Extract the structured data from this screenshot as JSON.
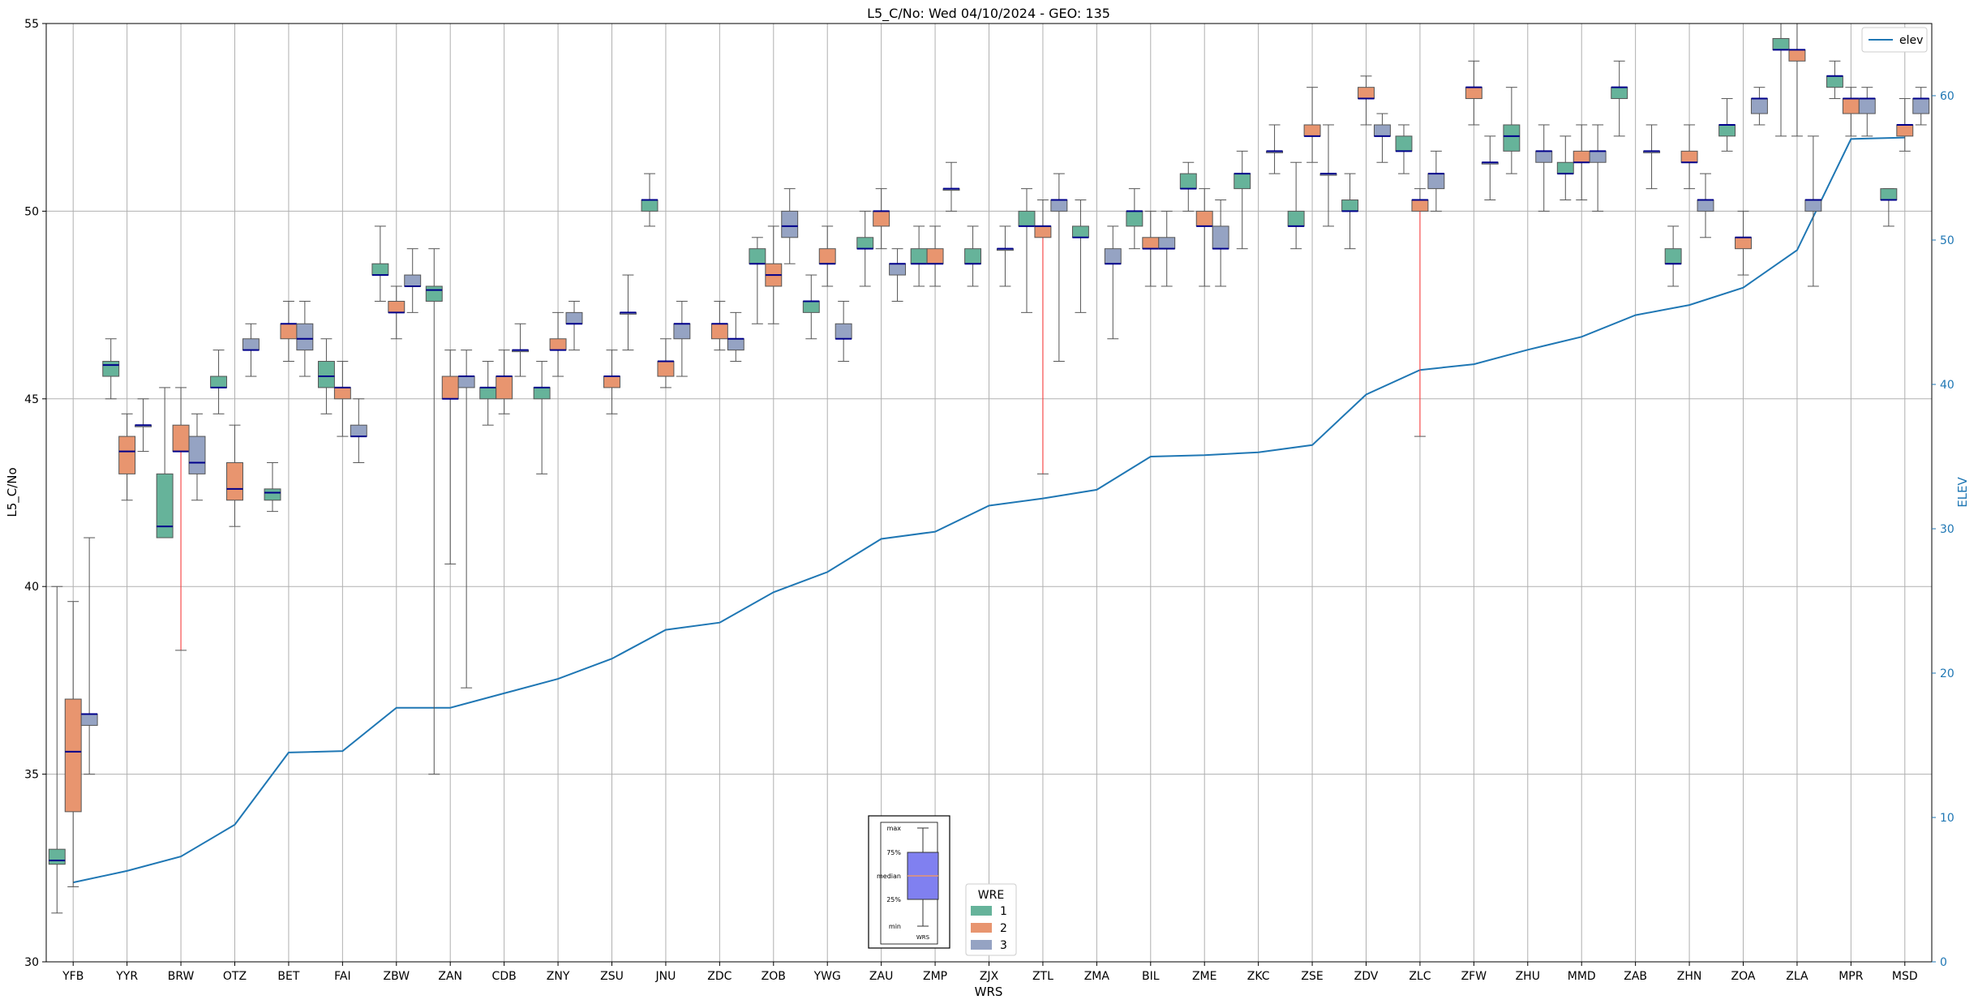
{
  "chart_data": {
    "type": "box",
    "title": "L5_C/No: Wed 04/10/2024 - GEO: 135",
    "xlabel": "WRS",
    "ylabel": "L5_C/No",
    "y2label": "ELEV",
    "ylim": [
      30,
      55
    ],
    "y2lim": [
      0,
      65
    ],
    "yticks": [
      30,
      35,
      40,
      45,
      50,
      55
    ],
    "y2ticks": [
      0,
      10,
      20,
      30,
      40,
      50,
      60
    ],
    "grid": true,
    "categories": [
      "YFB",
      "YYR",
      "BRW",
      "OTZ",
      "BET",
      "FAI",
      "ZBW",
      "ZAN",
      "CDB",
      "ZNY",
      "ZSU",
      "JNU",
      "ZDC",
      "ZOB",
      "YWG",
      "ZAU",
      "ZMP",
      "ZJX",
      "ZTL",
      "ZMA",
      "BIL",
      "ZME",
      "ZKC",
      "ZSE",
      "ZDV",
      "ZLC",
      "ZFW",
      "ZHU",
      "MMD",
      "ZAB",
      "ZHN",
      "ZOA",
      "ZLA",
      "MPR",
      "MSD"
    ],
    "series": [
      {
        "name": "1",
        "color": "#66b39a",
        "boxes": [
          [
            31.3,
            32.6,
            32.7,
            33.0,
            40.0
          ],
          [
            45.0,
            45.6,
            45.9,
            46.0,
            46.6
          ],
          [
            null,
            41.3,
            41.6,
            43.0,
            45.3
          ],
          [
            44.6,
            45.3,
            45.3,
            45.6,
            46.3
          ],
          [
            42.0,
            42.3,
            42.5,
            42.6,
            43.3
          ],
          [
            44.6,
            45.3,
            45.6,
            46.0,
            46.6
          ],
          [
            47.6,
            48.3,
            48.3,
            48.6,
            49.6
          ],
          [
            35.0,
            47.6,
            47.9,
            48.0,
            49.0
          ],
          [
            44.3,
            45.0,
            45.3,
            45.3,
            46.0
          ],
          [
            43.0,
            45.0,
            45.3,
            45.3,
            46.0
          ],
          null,
          [
            49.6,
            50.0,
            50.3,
            50.3,
            51.0
          ],
          null,
          [
            47.0,
            48.6,
            48.6,
            49.0,
            49.3
          ],
          [
            46.6,
            47.3,
            47.6,
            47.6,
            48.3
          ],
          [
            48.0,
            49.0,
            49.0,
            49.3,
            50.0
          ],
          [
            48.0,
            48.6,
            48.6,
            49.0,
            49.6
          ],
          [
            48.0,
            48.6,
            48.6,
            49.0,
            49.6
          ],
          [
            47.3,
            49.6,
            49.6,
            50.0,
            50.6
          ],
          [
            47.3,
            49.3,
            49.3,
            49.6,
            50.3
          ],
          [
            49.0,
            49.6,
            50.0,
            50.0,
            50.6
          ],
          [
            50.0,
            50.6,
            50.6,
            51.0,
            51.3
          ],
          [
            49.0,
            50.6,
            51.0,
            51.0,
            51.6
          ],
          [
            49.0,
            49.6,
            49.6,
            50.0,
            51.3
          ],
          [
            49.0,
            50.0,
            50.0,
            50.3,
            51.0
          ],
          [
            51.0,
            51.6,
            51.6,
            52.0,
            52.3
          ],
          null,
          [
            51.0,
            51.6,
            52.0,
            52.3,
            53.3
          ],
          [
            50.3,
            51.0,
            51.0,
            51.3,
            52.0
          ],
          [
            52.0,
            53.0,
            53.3,
            53.3,
            54.0
          ],
          [
            48.0,
            48.6,
            48.6,
            49.0,
            49.6
          ],
          [
            51.6,
            52.0,
            52.3,
            52.3,
            53.0
          ],
          [
            52.0,
            54.3,
            54.3,
            54.6,
            55.0
          ],
          [
            53.0,
            53.3,
            53.6,
            53.6,
            54.0
          ],
          [
            49.6,
            50.3,
            50.3,
            50.6,
            50.6
          ]
        ]
      },
      {
        "name": "2",
        "color": "#e8956f",
        "boxes": [
          [
            32.0,
            34.0,
            35.6,
            37.0,
            39.6
          ],
          [
            42.3,
            43.0,
            43.6,
            44.0,
            44.6
          ],
          [
            38.3,
            43.6,
            43.6,
            44.3,
            45.3
          ],
          [
            41.6,
            42.3,
            42.6,
            43.3,
            44.3
          ],
          [
            46.0,
            46.6,
            47.0,
            47.0,
            47.6
          ],
          [
            44.0,
            45.0,
            45.3,
            45.3,
            46.0
          ],
          [
            46.6,
            47.3,
            47.3,
            47.6,
            48.0
          ],
          [
            40.6,
            45.0,
            45.0,
            45.6,
            46.3
          ],
          [
            44.6,
            45.0,
            45.6,
            45.6,
            46.3
          ],
          [
            45.6,
            46.3,
            46.3,
            46.6,
            47.3
          ],
          [
            44.6,
            45.3,
            45.6,
            45.6,
            46.3
          ],
          [
            45.3,
            45.6,
            46.0,
            46.0,
            46.6
          ],
          [
            46.3,
            46.6,
            47.0,
            47.0,
            47.6
          ],
          [
            47.0,
            48.0,
            48.3,
            48.6,
            49.6
          ],
          [
            48.0,
            48.6,
            48.6,
            49.0,
            49.6
          ],
          [
            49.0,
            49.6,
            50.0,
            50.0,
            50.6
          ],
          [
            48.0,
            48.6,
            48.6,
            49.0,
            49.6
          ],
          null,
          [
            43.0,
            49.3,
            49.6,
            49.6,
            50.3
          ],
          null,
          [
            48.0,
            49.0,
            49.0,
            49.3,
            50.0
          ],
          [
            48.0,
            49.6,
            49.6,
            50.0,
            50.6
          ],
          null,
          [
            51.3,
            52.0,
            52.0,
            52.3,
            53.3
          ],
          [
            52.3,
            53.0,
            53.0,
            53.3,
            53.6
          ],
          [
            44.0,
            50.0,
            50.3,
            50.3,
            50.6
          ],
          [
            52.3,
            53.0,
            53.3,
            53.3,
            54.0
          ],
          null,
          [
            50.3,
            51.3,
            51.3,
            51.6,
            52.3
          ],
          null,
          [
            50.6,
            51.3,
            51.3,
            51.6,
            52.3
          ],
          [
            48.3,
            49.0,
            49.3,
            49.3,
            50.0
          ],
          [
            52.0,
            54.0,
            54.3,
            54.3,
            55.0
          ],
          [
            52.0,
            52.6,
            53.0,
            53.0,
            53.3
          ],
          [
            51.6,
            52.0,
            52.3,
            52.3,
            53.0
          ]
        ]
      },
      {
        "name": "3",
        "color": "#95a3c3",
        "boxes": [
          [
            35.0,
            36.3,
            36.6,
            36.6,
            41.3
          ],
          [
            43.6,
            44.3,
            44.3,
            44.3,
            45.0
          ],
          [
            42.3,
            43.0,
            43.3,
            44.0,
            44.6
          ],
          [
            45.6,
            46.3,
            46.3,
            46.6,
            47.0
          ],
          [
            45.6,
            46.3,
            46.6,
            47.0,
            47.6
          ],
          [
            43.3,
            44.0,
            44.0,
            44.3,
            45.0
          ],
          [
            47.3,
            48.0,
            48.0,
            48.3,
            49.0
          ],
          [
            37.3,
            45.3,
            45.6,
            45.6,
            46.3
          ],
          [
            45.6,
            46.3,
            46.3,
            46.3,
            47.0
          ],
          [
            46.3,
            47.0,
            47.0,
            47.3,
            47.6
          ],
          [
            46.3,
            47.3,
            47.3,
            47.3,
            48.3
          ],
          [
            45.6,
            46.6,
            47.0,
            47.0,
            47.6
          ],
          [
            46.0,
            46.3,
            46.6,
            46.6,
            47.3
          ],
          [
            48.6,
            49.3,
            49.6,
            50.0,
            50.6
          ],
          [
            46.0,
            46.6,
            46.6,
            47.0,
            47.6
          ],
          [
            47.6,
            48.3,
            48.6,
            48.6,
            49.0
          ],
          [
            50.0,
            50.6,
            50.6,
            50.6,
            51.3
          ],
          [
            48.0,
            49.0,
            49.0,
            49.0,
            49.6
          ],
          [
            46.0,
            50.0,
            50.3,
            50.3,
            51.0
          ],
          [
            46.6,
            48.6,
            48.6,
            49.0,
            49.6
          ],
          [
            48.0,
            49.0,
            49.0,
            49.3,
            50.0
          ],
          [
            48.0,
            49.0,
            49.0,
            49.6,
            50.3
          ],
          [
            51.0,
            51.6,
            51.6,
            51.6,
            52.3
          ],
          [
            49.6,
            51.0,
            51.0,
            51.0,
            52.3
          ],
          [
            51.3,
            52.0,
            52.0,
            52.3,
            52.6
          ],
          [
            50.0,
            50.6,
            51.0,
            51.0,
            51.6
          ],
          [
            50.3,
            51.3,
            51.3,
            51.3,
            52.0
          ],
          [
            50.0,
            51.3,
            51.6,
            51.6,
            52.3
          ],
          [
            50.0,
            51.3,
            51.6,
            51.6,
            52.3
          ],
          [
            50.6,
            51.6,
            51.6,
            51.6,
            52.3
          ],
          [
            49.3,
            50.0,
            50.3,
            50.3,
            51.0
          ],
          [
            52.3,
            52.6,
            53.0,
            53.0,
            53.3
          ],
          [
            48.0,
            50.0,
            50.3,
            50.3,
            52.0
          ],
          [
            52.0,
            52.6,
            53.0,
            53.0,
            53.3
          ],
          [
            52.3,
            52.6,
            53.0,
            53.0,
            53.3
          ]
        ]
      }
    ],
    "elev": {
      "name": "elev",
      "color": "#1f77b4",
      "values": [
        5.5,
        6.3,
        7.3,
        9.5,
        14.5,
        14.6,
        17.6,
        17.6,
        18.6,
        19.6,
        21.0,
        23.0,
        23.5,
        25.6,
        27.0,
        29.3,
        29.8,
        31.6,
        32.1,
        32.7,
        35.0,
        35.1,
        35.3,
        35.8,
        39.3,
        41.0,
        41.4,
        42.4,
        43.3,
        44.8,
        45.5,
        46.7,
        49.3,
        57.0,
        57.1
      ]
    },
    "legend": {
      "elev_label": "elev",
      "elev_position": "top-right",
      "wre_title": "WRE",
      "wre_position": "bottom-center",
      "entries": [
        "1",
        "2",
        "3"
      ]
    },
    "key": {
      "labels": [
        "max",
        "75%",
        "median",
        "25%",
        "min"
      ],
      "footer": "WRS"
    }
  }
}
